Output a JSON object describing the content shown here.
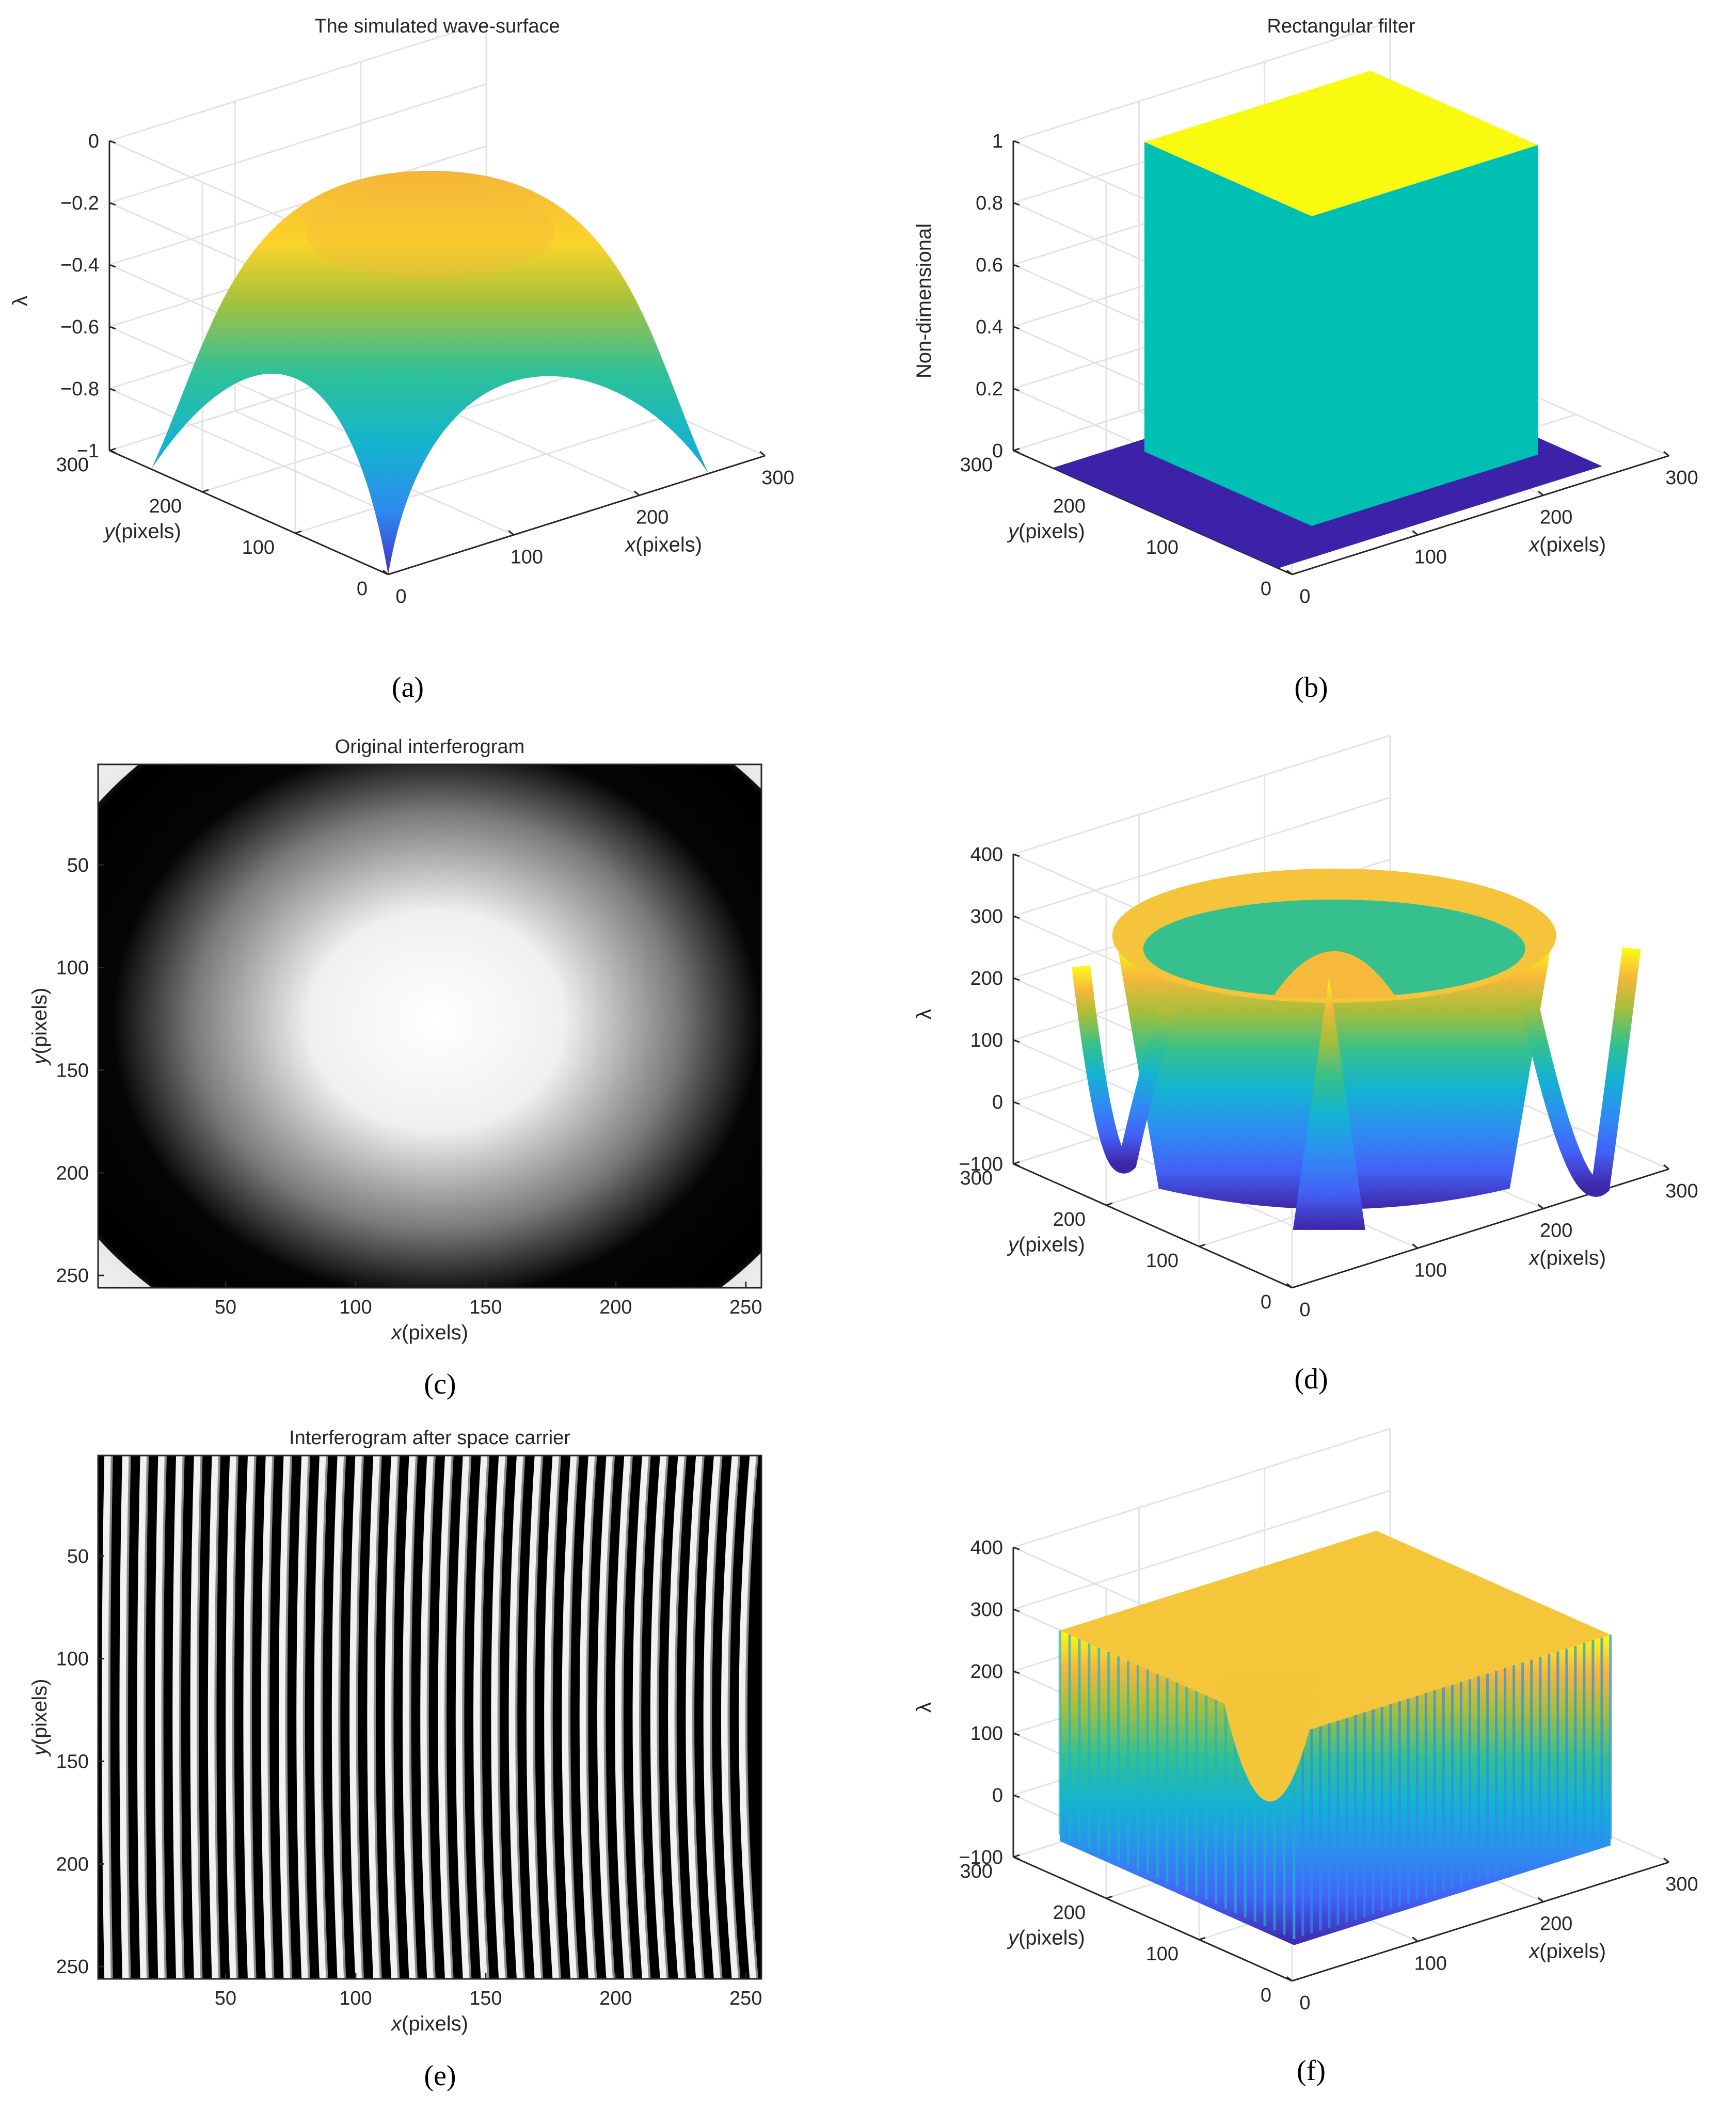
{
  "chart_data": [
    {
      "id": "a",
      "type": "surface3d",
      "caption": "a",
      "title": "The simulated wave-surface",
      "xlabel": "x(pixels)",
      "ylabel": "y(pixels)",
      "zlabel": "λ",
      "xticks": [
        "0",
        "100",
        "200",
        "300"
      ],
      "yticks": [
        "0",
        "100",
        "200",
        "300"
      ],
      "zticks": [
        "−1",
        "−0.8",
        "−0.6",
        "−0.4",
        "−0.2",
        "0"
      ],
      "xlim": [
        0,
        300
      ],
      "ylim": [
        0,
        300
      ],
      "zlim": [
        -1,
        0
      ],
      "surface": "paraboloid dome peaking at about -0.1 at the center (128,128), falling to -1 at the grid corners (0..256)"
    },
    {
      "id": "b",
      "type": "surface3d",
      "caption": "b",
      "title": "Rectangular filter",
      "xlabel": "x(pixels)",
      "ylabel": "y(pixels)",
      "zlabel": "Non-dimensional",
      "xticks": [
        "0",
        "100",
        "200",
        "300"
      ],
      "yticks": [
        "0",
        "100",
        "200",
        "300"
      ],
      "zticks": [
        "0",
        "0.2",
        "0.4",
        "0.6",
        "0.8",
        "1"
      ],
      "xlim": [
        0,
        300
      ],
      "ylim": [
        0,
        300
      ],
      "zlim": [
        0,
        1
      ],
      "surface": "value 1 inside a centered square window, 0 elsewhere on a 256x256 grid"
    },
    {
      "id": "c",
      "type": "heatmap",
      "caption": "c",
      "title": "Original interferogram",
      "xlabel": "x(pixels)",
      "ylabel": "y(pixels)",
      "xticks": [
        "50",
        "100",
        "150",
        "200",
        "250"
      ],
      "yticks": [
        "50",
        "100",
        "150",
        "200",
        "250"
      ],
      "xlim": [
        1,
        256
      ],
      "ylim": [
        1,
        256
      ],
      "colormap": "gray",
      "pattern": "concentric circular fringes centered near (128,128)"
    },
    {
      "id": "d",
      "type": "surface3d",
      "caption": "d",
      "xlabel": "x(pixels)",
      "ylabel": "y(pixels)",
      "zlabel": "λ",
      "xticks": [
        "0",
        "100",
        "200",
        "300"
      ],
      "yticks": [
        "0",
        "100",
        "200",
        "300"
      ],
      "zticks": [
        "−100",
        "0",
        "100",
        "200",
        "300",
        "400"
      ],
      "xlim": [
        0,
        300
      ],
      "ylim": [
        0,
        300
      ],
      "zlim": [
        -100,
        400
      ]
    },
    {
      "id": "e",
      "type": "heatmap",
      "caption": "e",
      "title": "Interferogram after space carrier",
      "xlabel": "x(pixels)",
      "ylabel": "y(pixels)",
      "xticks": [
        "50",
        "100",
        "150",
        "200",
        "250"
      ],
      "yticks": [
        "50",
        "100",
        "150",
        "200",
        "250"
      ],
      "xlim": [
        1,
        256
      ],
      "ylim": [
        1,
        256
      ],
      "colormap": "gray",
      "pattern": "about 37 nearly vertical fringes slightly curved"
    },
    {
      "id": "f",
      "type": "surface3d",
      "caption": "f",
      "xlabel": "x(pixels)",
      "ylabel": "y(pixels)",
      "zlabel": "λ",
      "xticks": [
        "0",
        "100",
        "200",
        "300"
      ],
      "yticks": [
        "0",
        "100",
        "200",
        "300"
      ],
      "zticks": [
        "−100",
        "0",
        "100",
        "200",
        "300",
        "400"
      ],
      "xlim": [
        0,
        300
      ],
      "ylim": [
        0,
        300
      ],
      "zlim": [
        -100,
        400
      ]
    }
  ]
}
